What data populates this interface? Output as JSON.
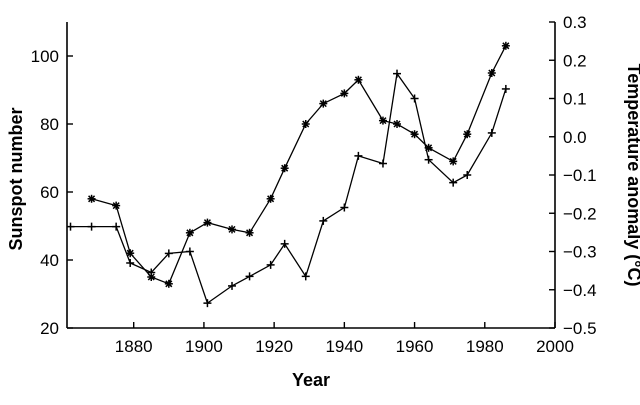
{
  "chart_data": {
    "type": "line",
    "title": "",
    "xlabel": "Year",
    "ylabel_left": "Sunspot number",
    "ylabel_right": "Temperature anomaly (°C)",
    "xlim": [
      1861,
      2000
    ],
    "ylim_left": [
      20,
      110
    ],
    "ylim_right": [
      -0.5,
      0.3
    ],
    "x_ticks": [
      1880,
      1900,
      1920,
      1940,
      1960,
      1980,
      2000
    ],
    "y_ticks_left": [
      20,
      40,
      60,
      80,
      100
    ],
    "y_ticks_right": [
      -0.5,
      -0.4,
      -0.3,
      -0.2,
      -0.1,
      0.0,
      0.1,
      0.2,
      0.3
    ],
    "y_tick_labels_right": [
      "−0.5",
      "−0.4",
      "−0.3",
      "−0.2",
      "−0.1",
      "0.0",
      "0.1",
      "0.2",
      "0.3"
    ],
    "grid": false,
    "legend": "none",
    "series": [
      {
        "axis": "left",
        "marker": "asterisk",
        "x": [
          1868,
          1875,
          1879,
          1885,
          1890,
          1896,
          1901,
          1908,
          1913,
          1919,
          1923,
          1929,
          1934,
          1940,
          1944,
          1951,
          1955,
          1960,
          1964,
          1971,
          1975,
          1982,
          1986
        ],
        "y": [
          58,
          56,
          42,
          35,
          33,
          48,
          51,
          49,
          48,
          58,
          67,
          80,
          86,
          89,
          93,
          81,
          80,
          77,
          73,
          69,
          77,
          95,
          103
        ]
      },
      {
        "axis": "right",
        "marker": "plus",
        "x": [
          1862,
          1868,
          1875,
          1879,
          1885,
          1890,
          1896,
          1901,
          1908,
          1913,
          1919,
          1923,
          1929,
          1934,
          1940,
          1944,
          1951,
          1955,
          1960,
          1964,
          1971,
          1975,
          1982,
          1986
        ],
        "y": [
          -0.235,
          -0.235,
          -0.235,
          -0.33,
          -0.355,
          -0.305,
          -0.3,
          -0.435,
          -0.39,
          -0.365,
          -0.335,
          -0.28,
          -0.365,
          -0.22,
          -0.185,
          -0.05,
          -0.07,
          0.165,
          0.1,
          -0.06,
          -0.12,
          -0.1,
          0.01,
          0.125
        ]
      }
    ]
  }
}
